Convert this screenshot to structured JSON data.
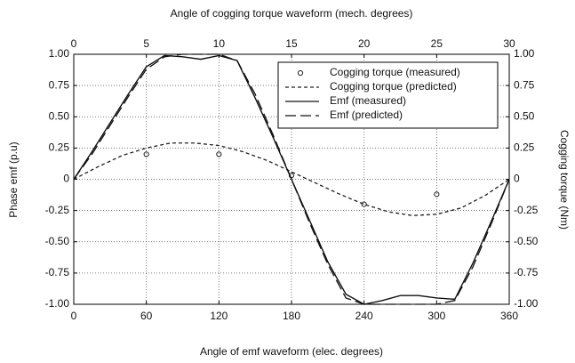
{
  "chart_data": {
    "type": "line",
    "title": "Angle of cogging torque waveform (mech. degrees)",
    "xlabel": "Angle of emf waveform (elec. degrees)",
    "ylabel": "Phase emf (p.u)",
    "y2label": "Cogging torque (Nm)",
    "xlim": [
      0,
      360
    ],
    "xticks": [
      0,
      60,
      120,
      180,
      240,
      300,
      360
    ],
    "x2lim": [
      0,
      30
    ],
    "x2ticks": [
      0,
      5,
      10,
      15,
      20,
      25,
      30
    ],
    "ylim": [
      -1,
      1
    ],
    "yticks": [
      {
        "value": -1,
        "label": "-1.00"
      },
      {
        "value": -0.75,
        "label": "-0.75"
      },
      {
        "value": -0.5,
        "label": "-0.50"
      },
      {
        "value": -0.25,
        "label": "-0.25"
      },
      0,
      {
        "value": 0.25,
        "label": "0.25"
      },
      {
        "value": 0.5,
        "label": "0.50"
      },
      {
        "value": 0.75,
        "label": "0.75"
      },
      {
        "value": 1,
        "label": "1.00"
      }
    ],
    "y2lim": [
      -1,
      1
    ],
    "y2ticks": [
      {
        "value": -1,
        "label": "-1.00"
      },
      {
        "value": -0.75,
        "label": "-0.75"
      },
      {
        "value": -0.5,
        "label": "-0.50"
      },
      {
        "value": -0.25,
        "label": "-0.25"
      },
      0,
      {
        "value": 0.25,
        "label": "0.25"
      },
      {
        "value": 0.5,
        "label": "0.50"
      },
      {
        "value": 0.75,
        "label": "0.75"
      },
      {
        "value": 1,
        "label": "1.00"
      }
    ],
    "grid": true,
    "legend": "upper right",
    "series": [
      {
        "name": "Cogging torque (measured)",
        "color": "#222222",
        "axis": "y2",
        "x": [
          60,
          120,
          180,
          240,
          300
        ],
        "values": [
          0.2,
          0.2,
          0.03,
          -0.2,
          -0.12
        ]
      },
      {
        "name": "Cogging torque (predicted)",
        "color": "#222222",
        "axis": "y2",
        "x": [
          0,
          20,
          40,
          60,
          80,
          100,
          120,
          140,
          160,
          180,
          200,
          220,
          240,
          260,
          280,
          300,
          320,
          340,
          360
        ],
        "values": [
          0,
          0.1,
          0.19,
          0.25,
          0.29,
          0.29,
          0.27,
          0.22,
          0.15,
          0.06,
          -0.03,
          -0.12,
          -0.2,
          -0.26,
          -0.29,
          -0.28,
          -0.23,
          -0.13,
          0
        ]
      },
      {
        "name": "Emf (measured)",
        "color": "#111111",
        "x": [
          0,
          15,
          30,
          45,
          60,
          75,
          90,
          105,
          120,
          135,
          150,
          165,
          180,
          195,
          210,
          225,
          240,
          255,
          270,
          285,
          300,
          315,
          330,
          345,
          360
        ],
        "values": [
          0,
          0.22,
          0.45,
          0.68,
          0.9,
          0.99,
          0.98,
          0.96,
          0.99,
          0.95,
          0.65,
          0.33,
          0,
          -0.33,
          -0.66,
          -0.92,
          -1,
          -0.97,
          -0.93,
          -0.93,
          -0.95,
          -0.96,
          -0.67,
          -0.34,
          0
        ]
      },
      {
        "name": "Emf (predicted)",
        "color": "#111111",
        "x": [
          0,
          15,
          30,
          45,
          60,
          75,
          90,
          105,
          120,
          135,
          150,
          165,
          180,
          195,
          210,
          225,
          240,
          255,
          270,
          285,
          300,
          315,
          330,
          345,
          360
        ],
        "values": [
          0,
          0.2,
          0.43,
          0.66,
          0.88,
          0.98,
          1,
          1,
          1,
          0.95,
          0.68,
          0.35,
          0,
          -0.35,
          -0.68,
          -0.95,
          -1,
          -1,
          -1,
          -1,
          -1,
          -0.97,
          -0.7,
          -0.36,
          0
        ]
      }
    ]
  }
}
